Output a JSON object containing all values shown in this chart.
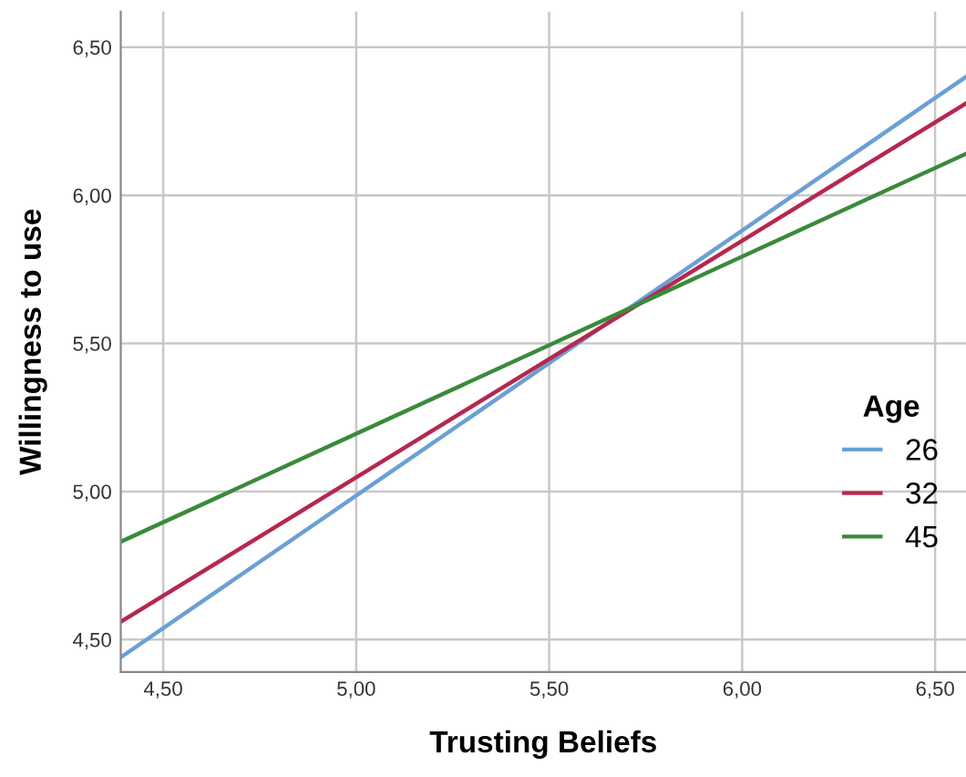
{
  "chart_data": {
    "type": "line",
    "xlabel": "Trusting Beliefs",
    "ylabel": "Willingness to use",
    "legend_title": "Age",
    "legend": "right",
    "x": [
      4.39,
      6.58
    ],
    "series": [
      {
        "name": "26",
        "color": "#6b9fd4",
        "values": [
          4.44,
          6.4
        ]
      },
      {
        "name": "32",
        "color": "#b5284e",
        "values": [
          4.56,
          6.31
        ]
      },
      {
        "name": "45",
        "color": "#3a8a3a",
        "values": [
          4.83,
          6.14
        ]
      }
    ],
    "xlim": [
      4.39,
      6.58
    ],
    "ylim": [
      4.39,
      6.62
    ],
    "xticks": [
      {
        "value": 4.5,
        "label": "4,50"
      },
      {
        "value": 5.0,
        "label": "5,00"
      },
      {
        "value": 5.5,
        "label": "5,50"
      },
      {
        "value": 6.0,
        "label": "6,00"
      },
      {
        "value": 6.5,
        "label": "6,50"
      }
    ],
    "yticks": [
      {
        "value": 4.5,
        "label": "4,50"
      },
      {
        "value": 5.0,
        "label": "5,00"
      },
      {
        "value": 5.5,
        "label": "5,50"
      },
      {
        "value": 6.0,
        "label": "6,00"
      },
      {
        "value": 6.5,
        "label": "6,50"
      }
    ],
    "grid": true
  }
}
